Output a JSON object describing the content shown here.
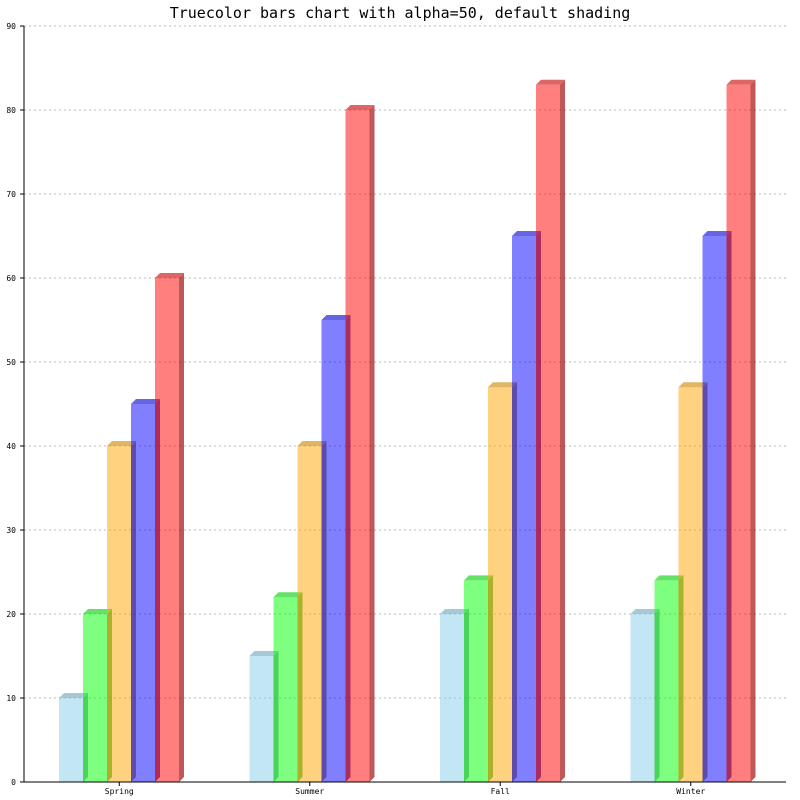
{
  "chart_data": {
    "type": "bar",
    "title": "Truecolor bars chart with alpha=50, default shading",
    "categories": [
      "Spring",
      "Summer",
      "Fall",
      "Winter"
    ],
    "series": [
      {
        "values": [
          10,
          15,
          20,
          20
        ],
        "color": "#87ceeb"
      },
      {
        "values": [
          20,
          22,
          24,
          24
        ],
        "color": "#00ff00"
      },
      {
        "values": [
          40,
          40,
          47,
          47
        ],
        "color": "#ffa500"
      },
      {
        "values": [
          45,
          55,
          65,
          65
        ],
        "color": "#0000ff"
      },
      {
        "values": [
          60,
          80,
          83,
          83
        ],
        "color": "#ff0000"
      }
    ],
    "ylim": [
      0,
      90
    ],
    "yticks": [
      0,
      10,
      20,
      30,
      40,
      50,
      60,
      70,
      80,
      90
    ],
    "xlabel": "",
    "ylabel": "",
    "grid": true,
    "bar_alpha": 0.5,
    "shading": "3d"
  }
}
